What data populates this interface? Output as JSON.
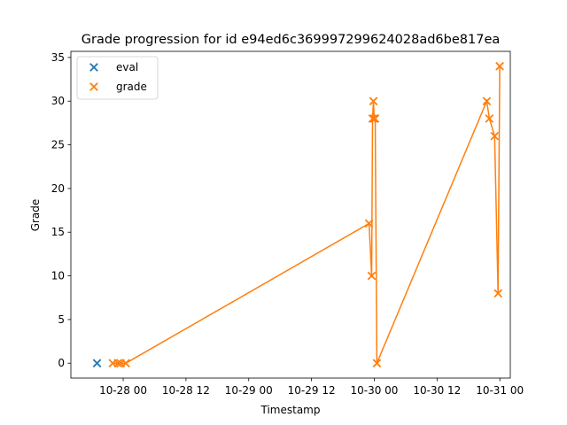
{
  "chart_data": {
    "type": "scatter",
    "title": "Grade progression for id e94ed6c369997299624028ad6be817ea",
    "xlabel": "Timestamp",
    "ylabel": "Grade",
    "x_ticks": [
      "10-28 00",
      "10-28 12",
      "10-29 00",
      "10-29 12",
      "10-30 00",
      "10-30 12",
      "10-31 00"
    ],
    "y_ticks": [
      "0",
      "5",
      "10",
      "15",
      "20",
      "25",
      "30",
      "35"
    ],
    "xlim": [
      "2023-10-27 14:00",
      "2023-10-31 02:00"
    ],
    "ylim": [
      -1.7,
      35.7
    ],
    "grid": false,
    "legend_position": "upper-left",
    "series": [
      {
        "name": "eval",
        "color": "#1f77b4",
        "marker": "x",
        "line": false,
        "points": [
          {
            "x": "2023-10-27 19:00",
            "y": 0
          }
        ]
      },
      {
        "name": "grade",
        "color": "#ff7f0e",
        "marker": "x",
        "line": true,
        "points": [
          {
            "x": "2023-10-27 22:00",
            "y": 0
          },
          {
            "x": "2023-10-27 23:00",
            "y": 0
          },
          {
            "x": "2023-10-27 23:30",
            "y": 0
          },
          {
            "x": "2023-10-28 00:30",
            "y": 0
          },
          {
            "x": "2023-10-29 23:00",
            "y": 16
          },
          {
            "x": "2023-10-29 23:30",
            "y": 10
          },
          {
            "x": "2023-10-29 23:40",
            "y": 28
          },
          {
            "x": "2023-10-29 23:50",
            "y": 30
          },
          {
            "x": "2023-10-30 00:00",
            "y": 28
          },
          {
            "x": "2023-10-30 00:10",
            "y": 28
          },
          {
            "x": "2023-10-30 00:30",
            "y": 0
          },
          {
            "x": "2023-10-30 21:30",
            "y": 30
          },
          {
            "x": "2023-10-30 22:00",
            "y": 28
          },
          {
            "x": "2023-10-30 23:00",
            "y": 26
          },
          {
            "x": "2023-10-30 23:40",
            "y": 8
          },
          {
            "x": "2023-10-30 23:59",
            "y": 34
          }
        ]
      }
    ]
  }
}
